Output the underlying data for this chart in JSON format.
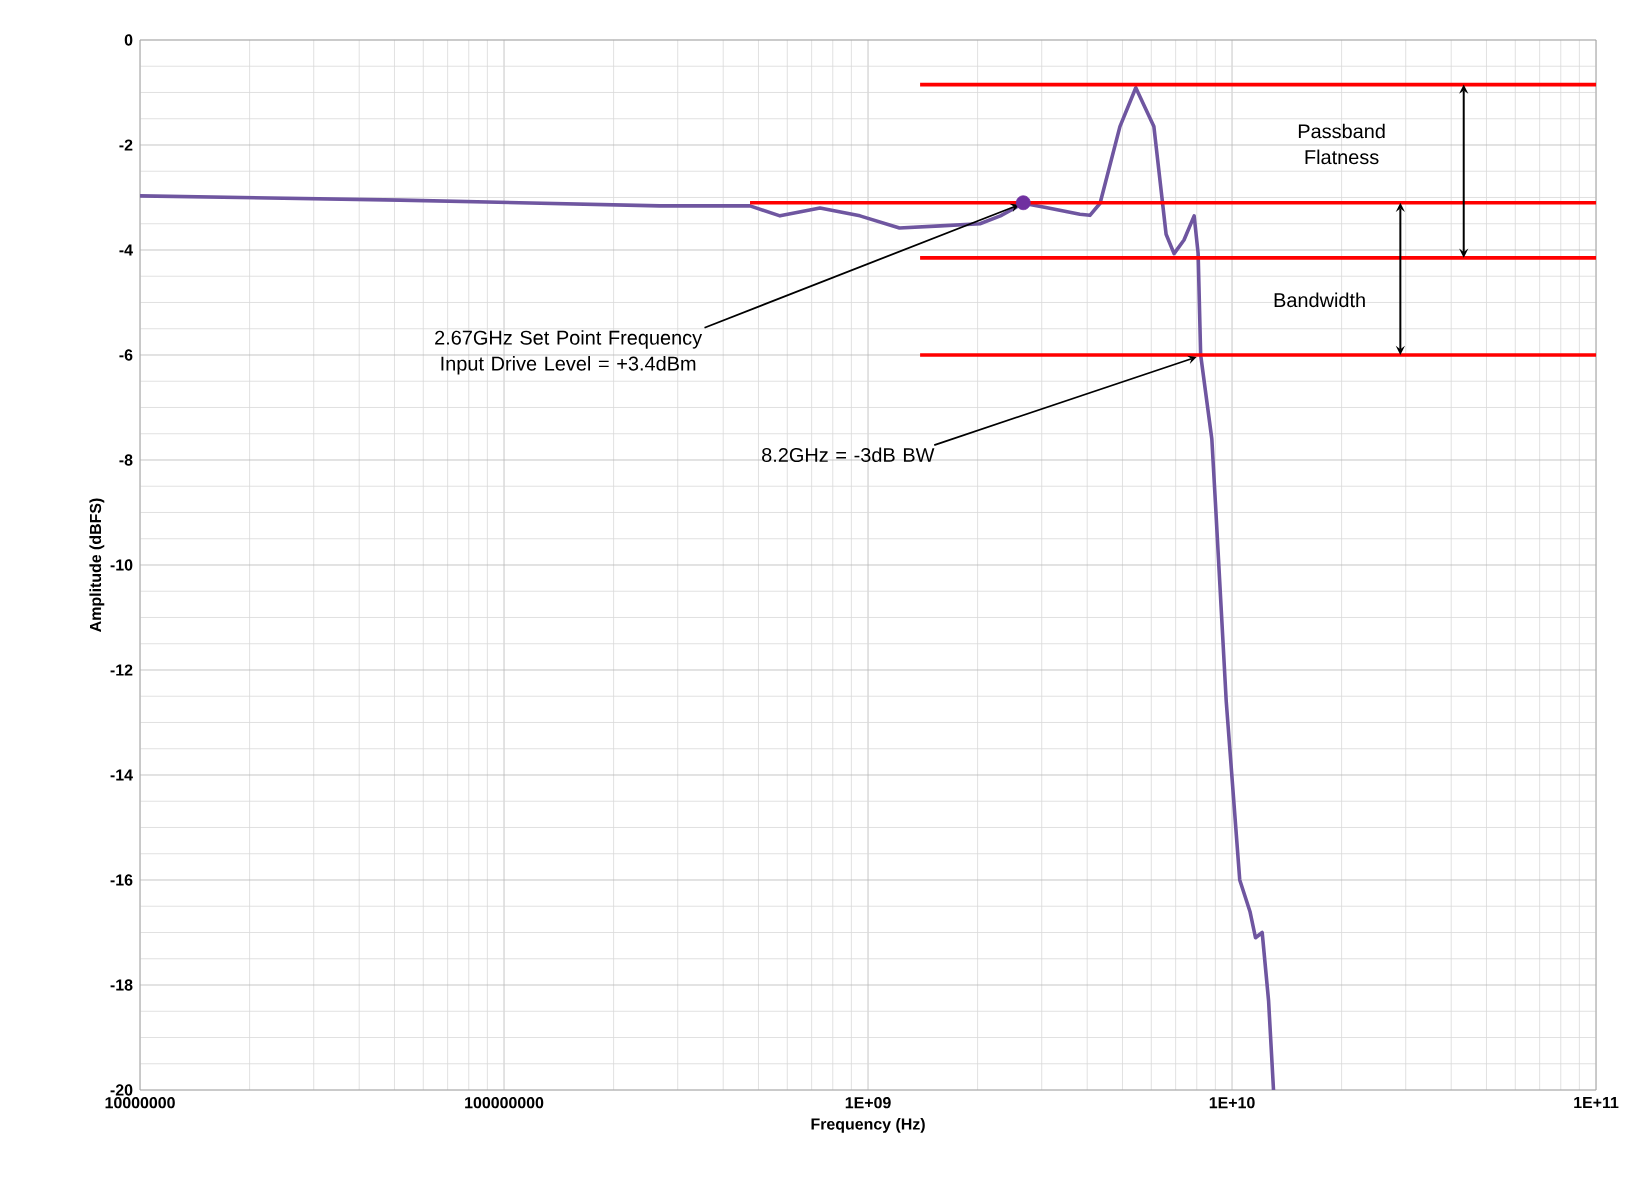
{
  "chart_data": {
    "type": "line",
    "xlabel": "Frequency (Hz)",
    "ylabel": "Amplitude (dBFS)",
    "log": "x",
    "grid": true,
    "xlim": [
      10000000,
      100000000000
    ],
    "ylim": [
      -20,
      0
    ],
    "xticks": [
      {
        "value": 10000000,
        "label": "10000000"
      },
      {
        "value": 100000000,
        "label": "100000000"
      },
      {
        "value": 1000000000,
        "label": "1E+09"
      },
      {
        "value": 10000000000,
        "label": "1E+10"
      },
      {
        "value": 100000000000,
        "label": "1E+11"
      }
    ],
    "yticks": [
      -20,
      -18,
      -16,
      -14,
      -12,
      -10,
      -8,
      -6,
      -4,
      -2,
      0
    ],
    "series": [
      {
        "color": "#6f56a0",
        "x": [
          10000000,
          51800000,
          268000000,
          474000000,
          573000000,
          738000000,
          950000000,
          1220000000,
          1580000000,
          2030000000,
          2310000000,
          2670000000,
          3080000000,
          3820000000,
          4070000000,
          4340000000,
          4920000000,
          5440000000,
          6100000000,
          6590000000,
          6930000000,
          7380000000,
          7870000000,
          8070000000,
          8200000000,
          8800000000,
          9000000000,
          9640000000,
          10500000000,
          11200000000,
          11600000000,
          12100000000,
          12600000000,
          13000000000
        ],
        "values": [
          -2.97,
          -3.05,
          -3.16,
          -3.16,
          -3.35,
          -3.2,
          -3.35,
          -3.58,
          -3.54,
          -3.5,
          -3.35,
          -3.11,
          -3.19,
          -3.32,
          -3.34,
          -3.11,
          -1.65,
          -0.91,
          -1.65,
          -3.7,
          -4.07,
          -3.81,
          -3.35,
          -4.07,
          -6.0,
          -7.6,
          -8.8,
          -12.6,
          -16.0,
          -16.6,
          -17.1,
          -17.0,
          -18.3,
          -20.0
        ]
      },
      {
        "type": "scatter",
        "color": "#7030a0",
        "x": [
          2670000000
        ],
        "values": [
          -3.1
        ]
      },
      {
        "color": "#ff0000",
        "x": [
          1390000000,
          100000000000
        ],
        "values": [
          -0.85,
          -0.85
        ]
      },
      {
        "color": "#ff0000",
        "x": [
          474000000,
          100000000000
        ],
        "values": [
          -3.1,
          -3.1
        ]
      },
      {
        "color": "#ff0000",
        "x": [
          1390000000,
          100000000000
        ],
        "values": [
          -4.15,
          -4.15
        ]
      },
      {
        "color": "#ff0000",
        "x": [
          1390000000,
          100000000000
        ],
        "values": [
          -6.0,
          -6.0
        ]
      }
    ],
    "annotations": [
      {
        "text": "2.67GHz Set Point Frequency Input Drive Level = +3.4dBm",
        "x": 2670000000,
        "y": -3.1
      },
      {
        "text": "8.2GHz = -3dB BW",
        "x": 8200000000,
        "y": -6.0
      },
      "Passband Flatness",
      "Bandwidth"
    ]
  }
}
